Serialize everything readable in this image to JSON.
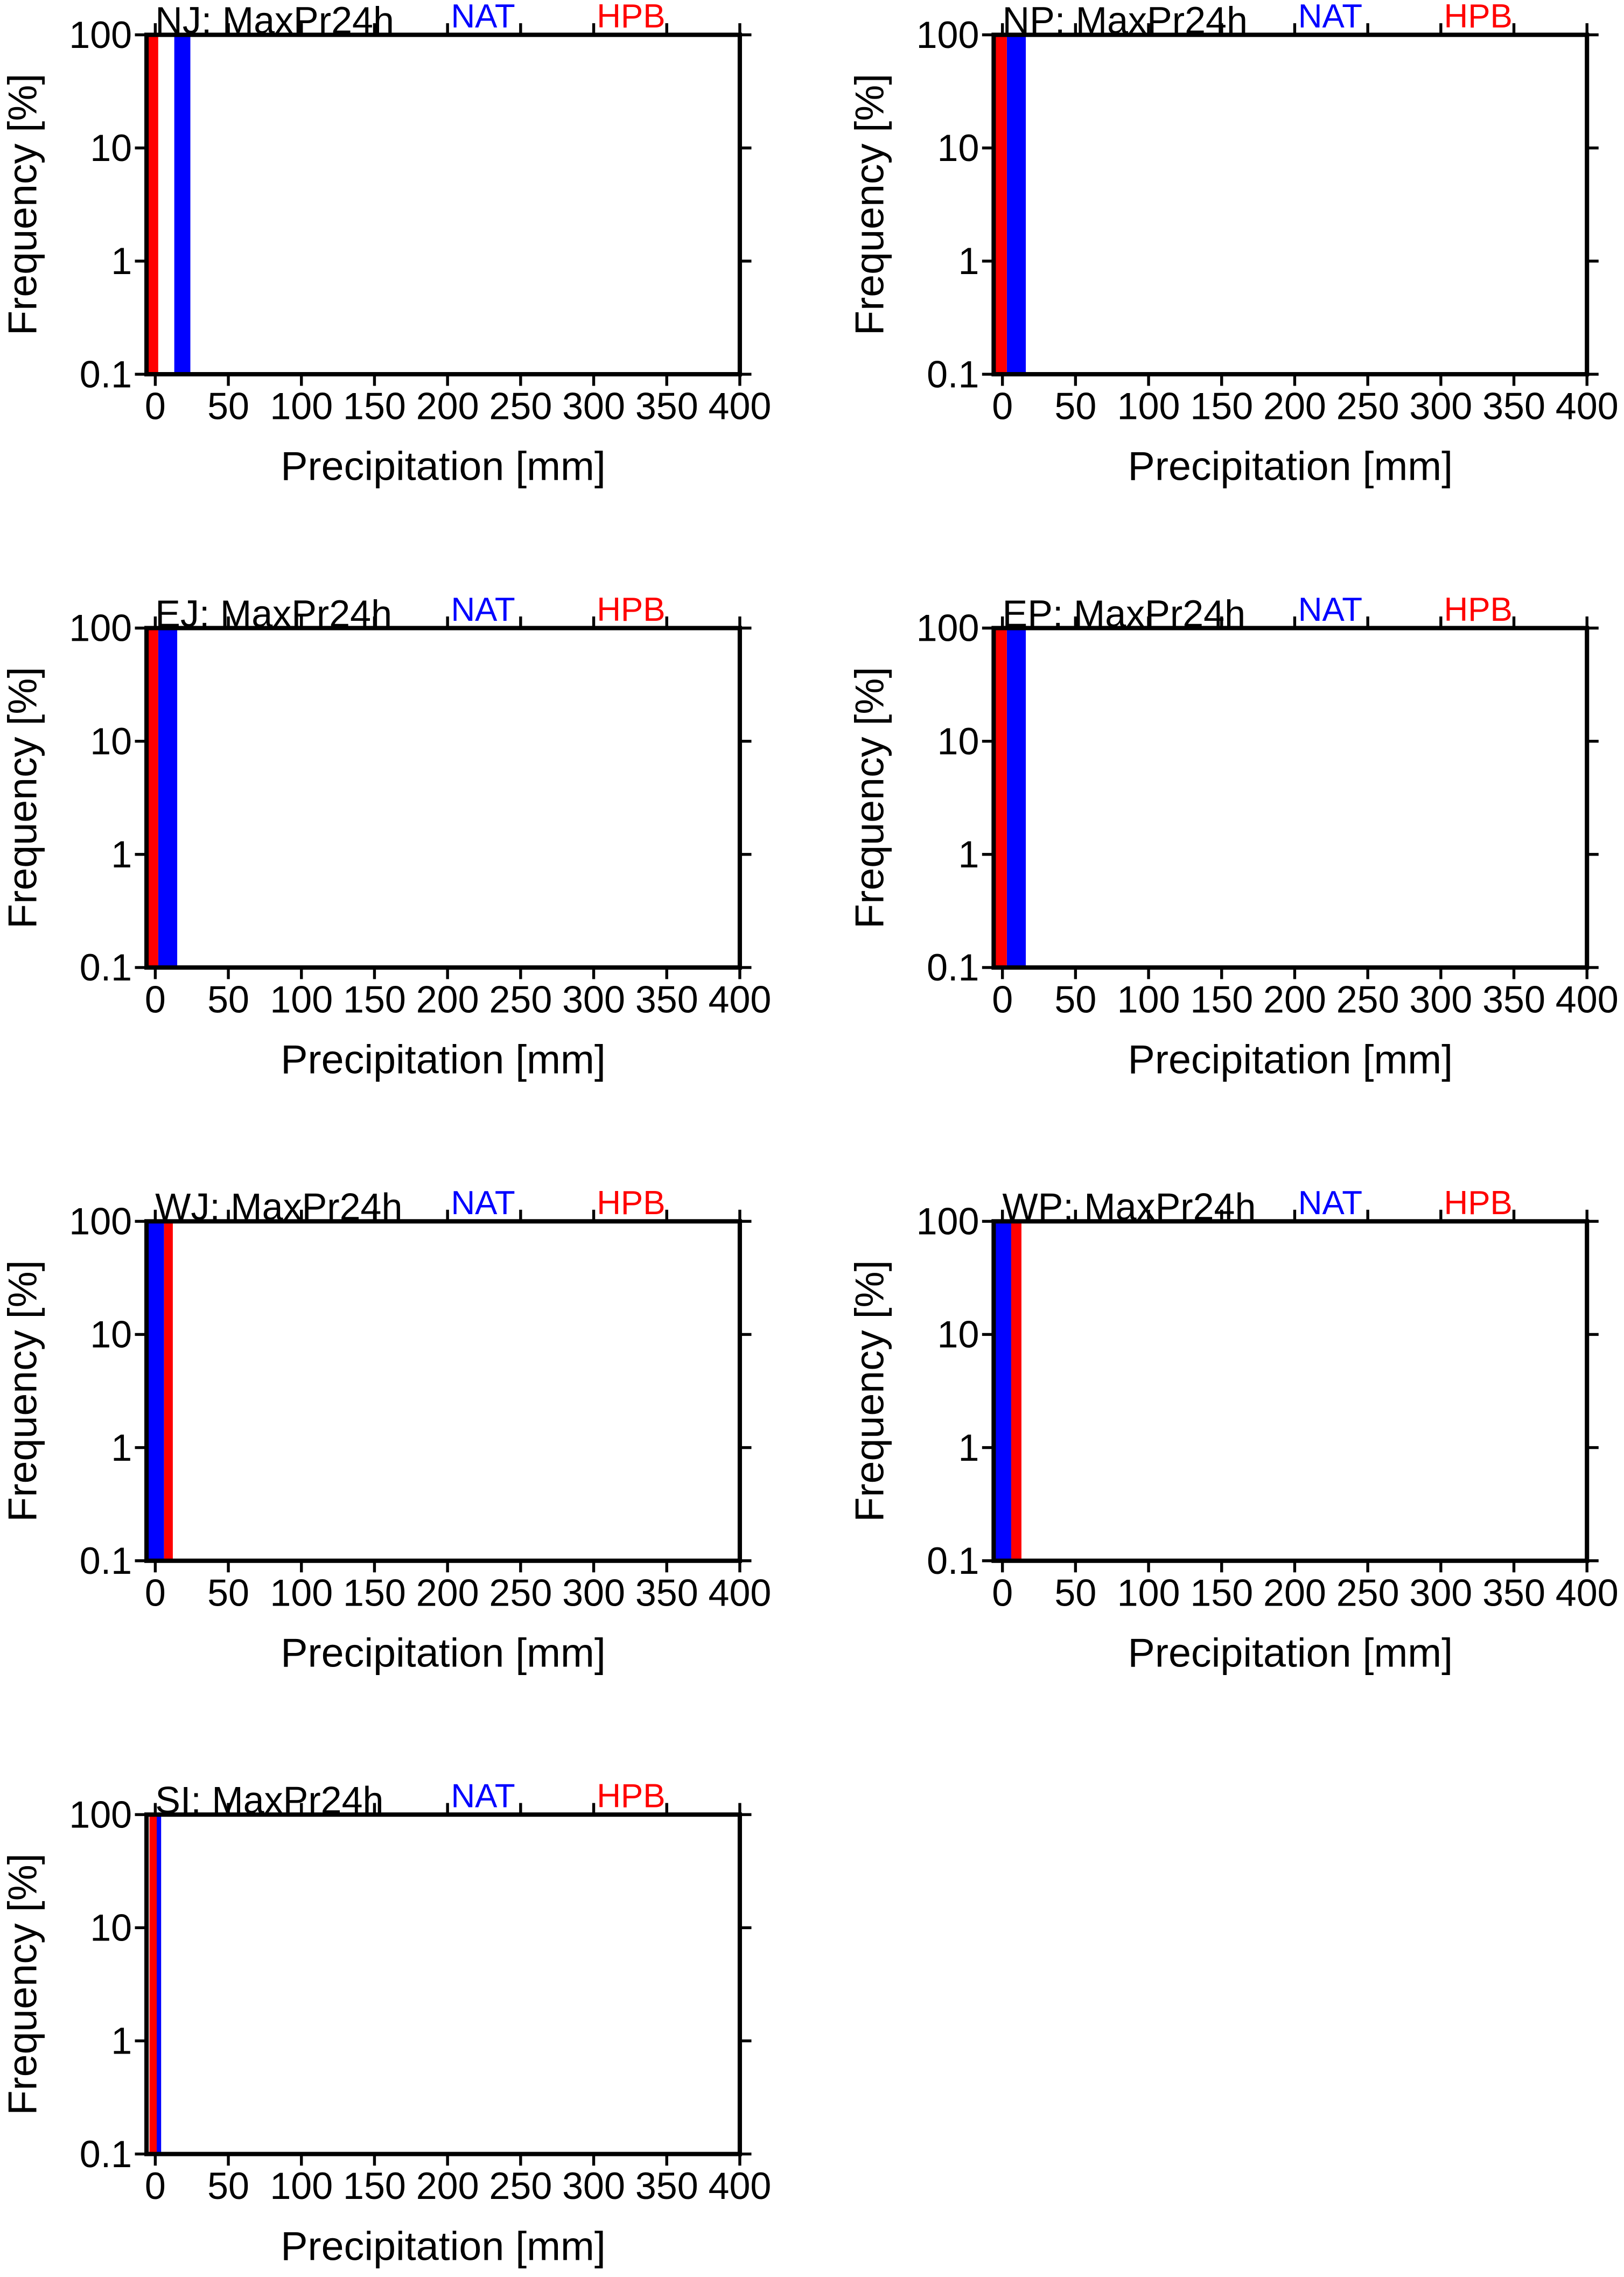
{
  "chart_data": [
    {
      "type": "histogram",
      "title": "NJ: MaxPr24h",
      "xlabel": "Precipitation [mm]",
      "ylabel": "Frequency [%]",
      "log_y": true,
      "xlim": [
        -6,
        400
      ],
      "ylim": [
        0.1,
        100
      ],
      "xticks": [
        0,
        50,
        100,
        150,
        200,
        250,
        300,
        350,
        400
      ],
      "yticks": [
        0.1,
        1,
        10,
        100
      ],
      "series": [
        {
          "name": "NAT",
          "color": "#0000ff",
          "bins": [
            13,
            24
          ],
          "values": [
            100
          ]
        },
        {
          "name": "HPB",
          "color": "#ff0000",
          "bins": [
            -6,
            2
          ],
          "values": [
            100
          ]
        }
      ]
    },
    {
      "type": "histogram",
      "title": "NP: MaxPr24h",
      "xlabel": "Precipitation [mm]",
      "ylabel": "Frequency [%]",
      "log_y": true,
      "xlim": [
        -6,
        400
      ],
      "ylim": [
        0.1,
        100
      ],
      "xticks": [
        0,
        50,
        100,
        150,
        200,
        250,
        300,
        350,
        400
      ],
      "yticks": [
        0.1,
        1,
        10,
        100
      ],
      "series": [
        {
          "name": "NAT",
          "color": "#0000ff",
          "bins": [
            3,
            16
          ],
          "values": [
            100
          ]
        },
        {
          "name": "HPB",
          "color": "#ff0000",
          "bins": [
            -6,
            3
          ],
          "values": [
            100
          ]
        }
      ]
    },
    {
      "type": "histogram",
      "title": "EJ: MaxPr24h",
      "xlabel": "Precipitation [mm]",
      "ylabel": "Frequency [%]",
      "log_y": true,
      "xlim": [
        -6,
        400
      ],
      "ylim": [
        0.1,
        100
      ],
      "xticks": [
        0,
        50,
        100,
        150,
        200,
        250,
        300,
        350,
        400
      ],
      "yticks": [
        0.1,
        1,
        10,
        100
      ],
      "series": [
        {
          "name": "NAT",
          "color": "#0000ff",
          "bins": [
            2,
            15
          ],
          "values": [
            100
          ]
        },
        {
          "name": "HPB",
          "color": "#ff0000",
          "bins": [
            -6,
            2
          ],
          "values": [
            100
          ]
        }
      ]
    },
    {
      "type": "histogram",
      "title": "EP: MaxPr24h",
      "xlabel": "Precipitation [mm]",
      "ylabel": "Frequency [%]",
      "log_y": true,
      "xlim": [
        -6,
        400
      ],
      "ylim": [
        0.1,
        100
      ],
      "xticks": [
        0,
        50,
        100,
        150,
        200,
        250,
        300,
        350,
        400
      ],
      "yticks": [
        0.1,
        1,
        10,
        100
      ],
      "series": [
        {
          "name": "NAT",
          "color": "#0000ff",
          "bins": [
            3,
            16
          ],
          "values": [
            100
          ]
        },
        {
          "name": "HPB",
          "color": "#ff0000",
          "bins": [
            -6,
            3
          ],
          "values": [
            100
          ]
        }
      ]
    },
    {
      "type": "histogram",
      "title": "WJ: MaxPr24h",
      "xlabel": "Precipitation [mm]",
      "ylabel": "Frequency [%]",
      "log_y": true,
      "xlim": [
        -6,
        400
      ],
      "ylim": [
        0.1,
        100
      ],
      "xticks": [
        0,
        50,
        100,
        150,
        200,
        250,
        300,
        350,
        400
      ],
      "yticks": [
        0.1,
        1,
        10,
        100
      ],
      "series": [
        {
          "name": "NAT",
          "color": "#0000ff",
          "bins": [
            -6,
            6
          ],
          "values": [
            100
          ]
        },
        {
          "name": "HPB",
          "color": "#ff0000",
          "bins": [
            6,
            12
          ],
          "values": [
            100
          ]
        }
      ]
    },
    {
      "type": "histogram",
      "title": "WP: MaxPr24h",
      "xlabel": "Precipitation [mm]",
      "ylabel": "Frequency [%]",
      "log_y": true,
      "xlim": [
        -6,
        400
      ],
      "ylim": [
        0.1,
        100
      ],
      "xticks": [
        0,
        50,
        100,
        150,
        200,
        250,
        300,
        350,
        400
      ],
      "yticks": [
        0.1,
        1,
        10,
        100
      ],
      "series": [
        {
          "name": "NAT",
          "color": "#0000ff",
          "bins": [
            -6,
            6
          ],
          "values": [
            100
          ]
        },
        {
          "name": "HPB",
          "color": "#ff0000",
          "bins": [
            6,
            13
          ],
          "values": [
            100
          ]
        }
      ]
    },
    {
      "type": "histogram",
      "title": "SI: MaxPr24h",
      "xlabel": "Precipitation [mm]",
      "ylabel": "Frequency [%]",
      "log_y": true,
      "xlim": [
        -6,
        400
      ],
      "ylim": [
        0.1,
        100
      ],
      "xticks": [
        0,
        50,
        100,
        150,
        200,
        250,
        300,
        350,
        400
      ],
      "yticks": [
        0.1,
        1,
        10,
        100
      ],
      "series": [
        {
          "name": "NAT",
          "color": "#0000ff",
          "bins": [
            -4,
            4
          ],
          "values": [
            100
          ]
        },
        {
          "name": "HPB",
          "color": "#ff0000",
          "bins": [
            -4,
            1
          ],
          "values": [
            100
          ]
        }
      ]
    }
  ]
}
